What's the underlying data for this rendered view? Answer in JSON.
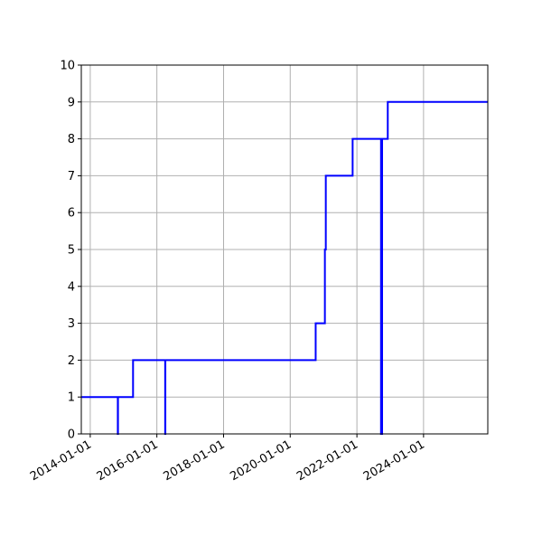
{
  "chart_data": {
    "type": "line",
    "drawstyle": "steps-post",
    "title": "",
    "xlabel": "",
    "ylabel": "",
    "x_axis_type": "date",
    "xlim": [
      "2013-09-25",
      "2025-12-05"
    ],
    "ylim": [
      0,
      10
    ],
    "grid": true,
    "color": "#0000ff",
    "x_ticks": [
      "2014-01-01",
      "2016-01-01",
      "2018-01-01",
      "2020-01-01",
      "2022-01-01",
      "2024-01-01"
    ],
    "y_ticks": [
      "0",
      "1",
      "2",
      "3",
      "4",
      "5",
      "6",
      "7",
      "8",
      "9",
      "10"
    ],
    "series": [
      {
        "x": [
          "2013-09-25",
          "2014-10-30",
          "2014-11-01",
          "2015-04-15",
          "2016-04-01",
          "2016-04-03",
          "2020-10-06",
          "2021-01-15",
          "2021-01-25",
          "2021-11-15",
          "2022-09-22",
          "2022-09-26",
          "2022-10-01",
          "2022-10-04",
          "2022-12-05",
          "2025-12-05"
        ],
        "y": [
          1,
          0,
          1,
          2,
          0,
          2,
          3,
          5,
          7,
          8,
          0,
          8,
          0,
          8,
          9,
          9
        ]
      }
    ]
  }
}
